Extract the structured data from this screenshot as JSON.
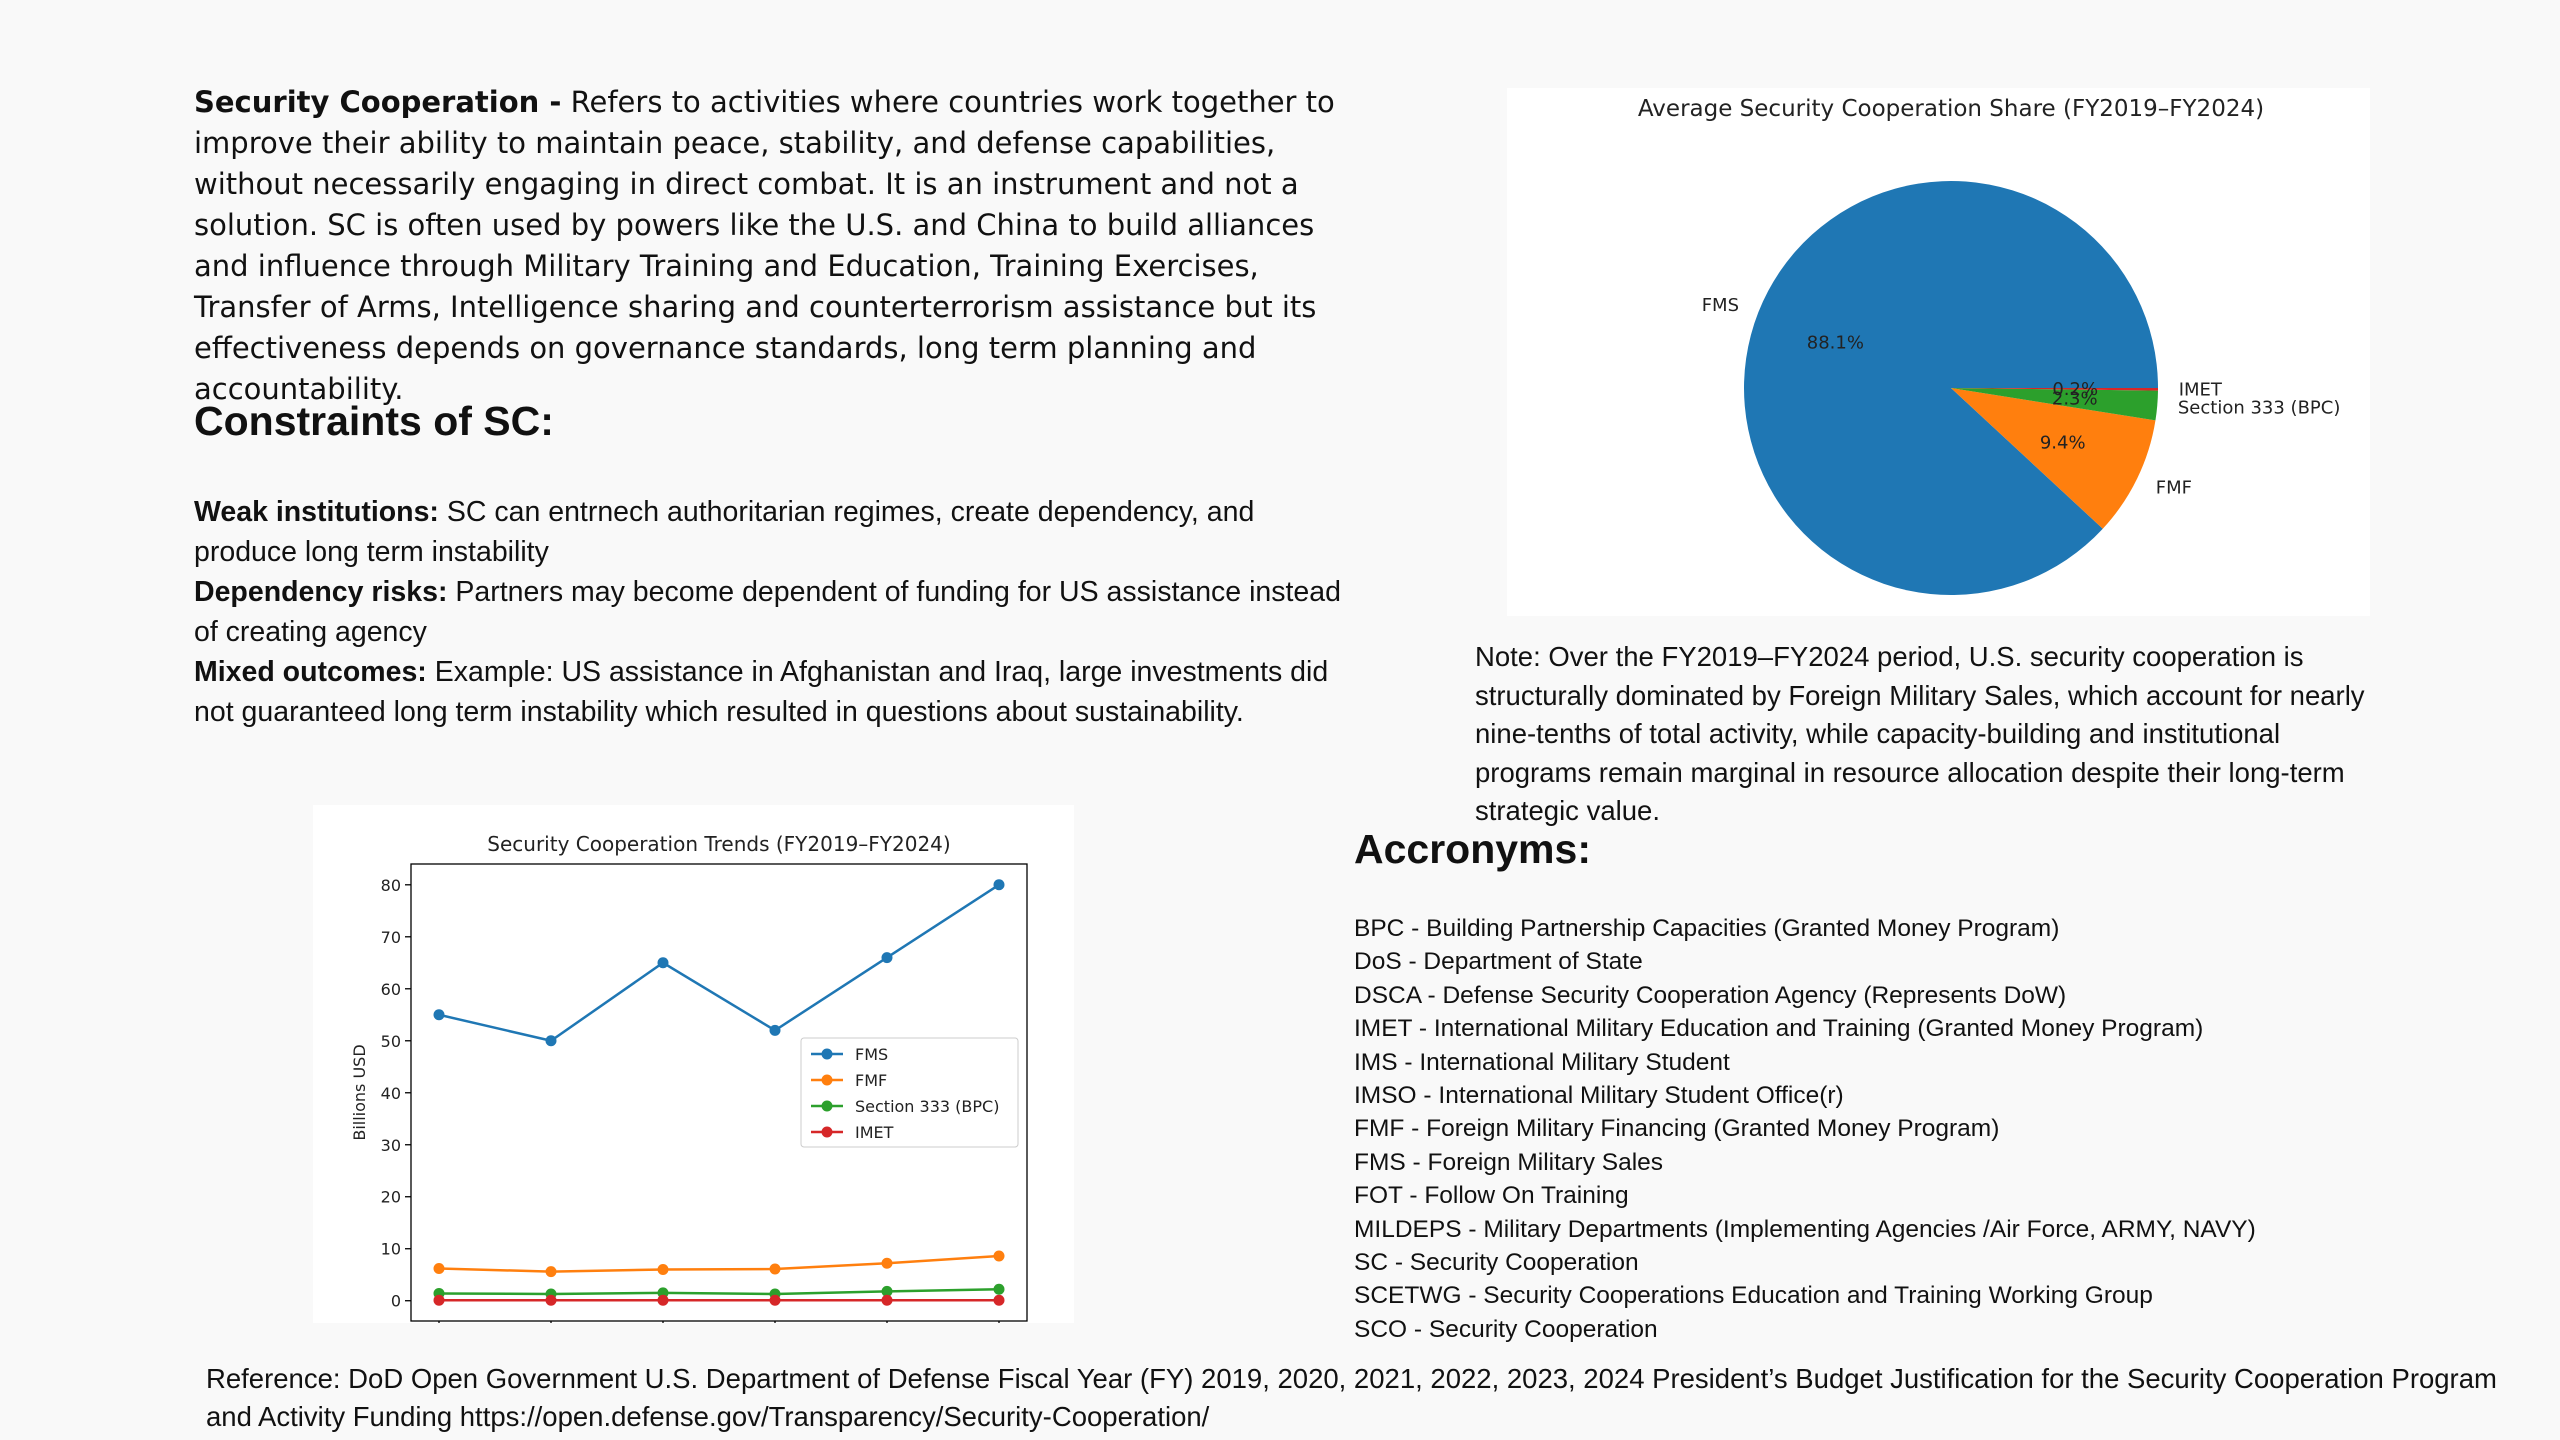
{
  "intro": {
    "term": "Security Cooperation -",
    "text": "Refers to activities where countries work together to improve their ability to maintain peace, stability, and defense capabilities, without necessarily engaging in direct combat.  It is an instrument and not a solution.  SC is often used by powers like the U.S. and China to build alliances and influence through Military Training and Education, Training Exercises, Transfer of Arms, Intelligence sharing and counterterrorism assistance but its effectiveness depends on governance standards, long term planning and accountability."
  },
  "constraints": {
    "heading": "Constraints of SC:",
    "items": [
      {
        "label": "Weak institutions:",
        "text": "SC can entrnech authoritarian regimes, create dependency, and produce long term instability"
      },
      {
        "label": "Dependency risks:",
        "text": "Partners may become dependent of funding for US assistance instead of creating agency"
      },
      {
        "label": "Mixed outcomes:",
        "text": "Example: US assistance in Afghanistan and Iraq, large investments did not guaranteed long term instability which resulted in questions about sustainability."
      }
    ]
  },
  "note": "Note: Over the FY2019–FY2024 period, U.S. security cooperation is structurally dominated by Foreign Military Sales, which account for nearly nine-tenths of total activity, while capacity-building and institutional programs remain marginal in resource allocation despite their long-term strategic value.",
  "acronyms": {
    "heading": "Accronyms:",
    "items": [
      "BPC - Building Partnership Capacities (Granted Money Program)",
      "DoS - Department of State",
      "DSCA - Defense Security Cooperation Agency  (Represents DoW)",
      "IMET - International Military Education and Training (Granted Money Program)",
      "IMS - International Military Student",
      "IMSO - International Military Student Office(r)",
      "FMF - Foreign Military Financing (Granted Money Program)",
      "FMS - Foreign Military Sales",
      "FOT - Follow On Training",
      "MILDEPS - Military Departments (Implementing Agencies /Air Force, ARMY, NAVY)",
      "SC - Security Cooperation",
      "SCETWG - Security Cooperations Education and Training Working Group",
      "SCO - Security Cooperation"
    ]
  },
  "reference": "Reference: DoD Open Government U.S. Department of Defense Fiscal Year (FY) 2019, 2020, 2021, 2022, 2023, 2024 President’s Budget Justification for the Security Cooperation Program and Activity Funding https://open.defense.gov/Transparency/Security-Cooperation/",
  "chart_data": [
    {
      "type": "pie",
      "title": "Average Security Cooperation Share (FY2019–FY2024)",
      "categories": [
        "FMS",
        "FMF",
        "Section 333 (BPC)",
        "IMET"
      ],
      "values": [
        88.1,
        9.4,
        2.3,
        0.2
      ],
      "value_labels": [
        "88.1%",
        "9.4%",
        "2.3%",
        "0.2%"
      ],
      "colors": [
        "#1f77b4",
        "#ff7f0e",
        "#2ca02c",
        "#d62728"
      ]
    },
    {
      "type": "line",
      "title": "Security Cooperation Trends (FY2019–FY2024)",
      "y_label": "Billions USD",
      "categories": [
        null,
        null,
        null,
        null,
        null,
        null
      ],
      "series": [
        {
          "name": "FMS",
          "color": "#1f77b4",
          "values": [
            55,
            50,
            65,
            52,
            66,
            80
          ]
        },
        {
          "name": "FMF",
          "color": "#ff7f0e",
          "values": [
            6.2,
            5.6,
            6.0,
            6.1,
            7.2,
            8.6
          ]
        },
        {
          "name": "Section 333 (BPC)",
          "color": "#2ca02c",
          "values": [
            1.4,
            1.3,
            1.5,
            1.3,
            1.8,
            2.2
          ]
        },
        {
          "name": "IMET",
          "color": "#d62728",
          "values": [
            0.1,
            0.1,
            0.1,
            0.1,
            0.1,
            0.1
          ]
        }
      ],
      "ylim": [
        -3.9,
        84
      ],
      "yticks": [
        0,
        10,
        20,
        30,
        40,
        50,
        60,
        70,
        80
      ],
      "legend": "center right"
    }
  ]
}
